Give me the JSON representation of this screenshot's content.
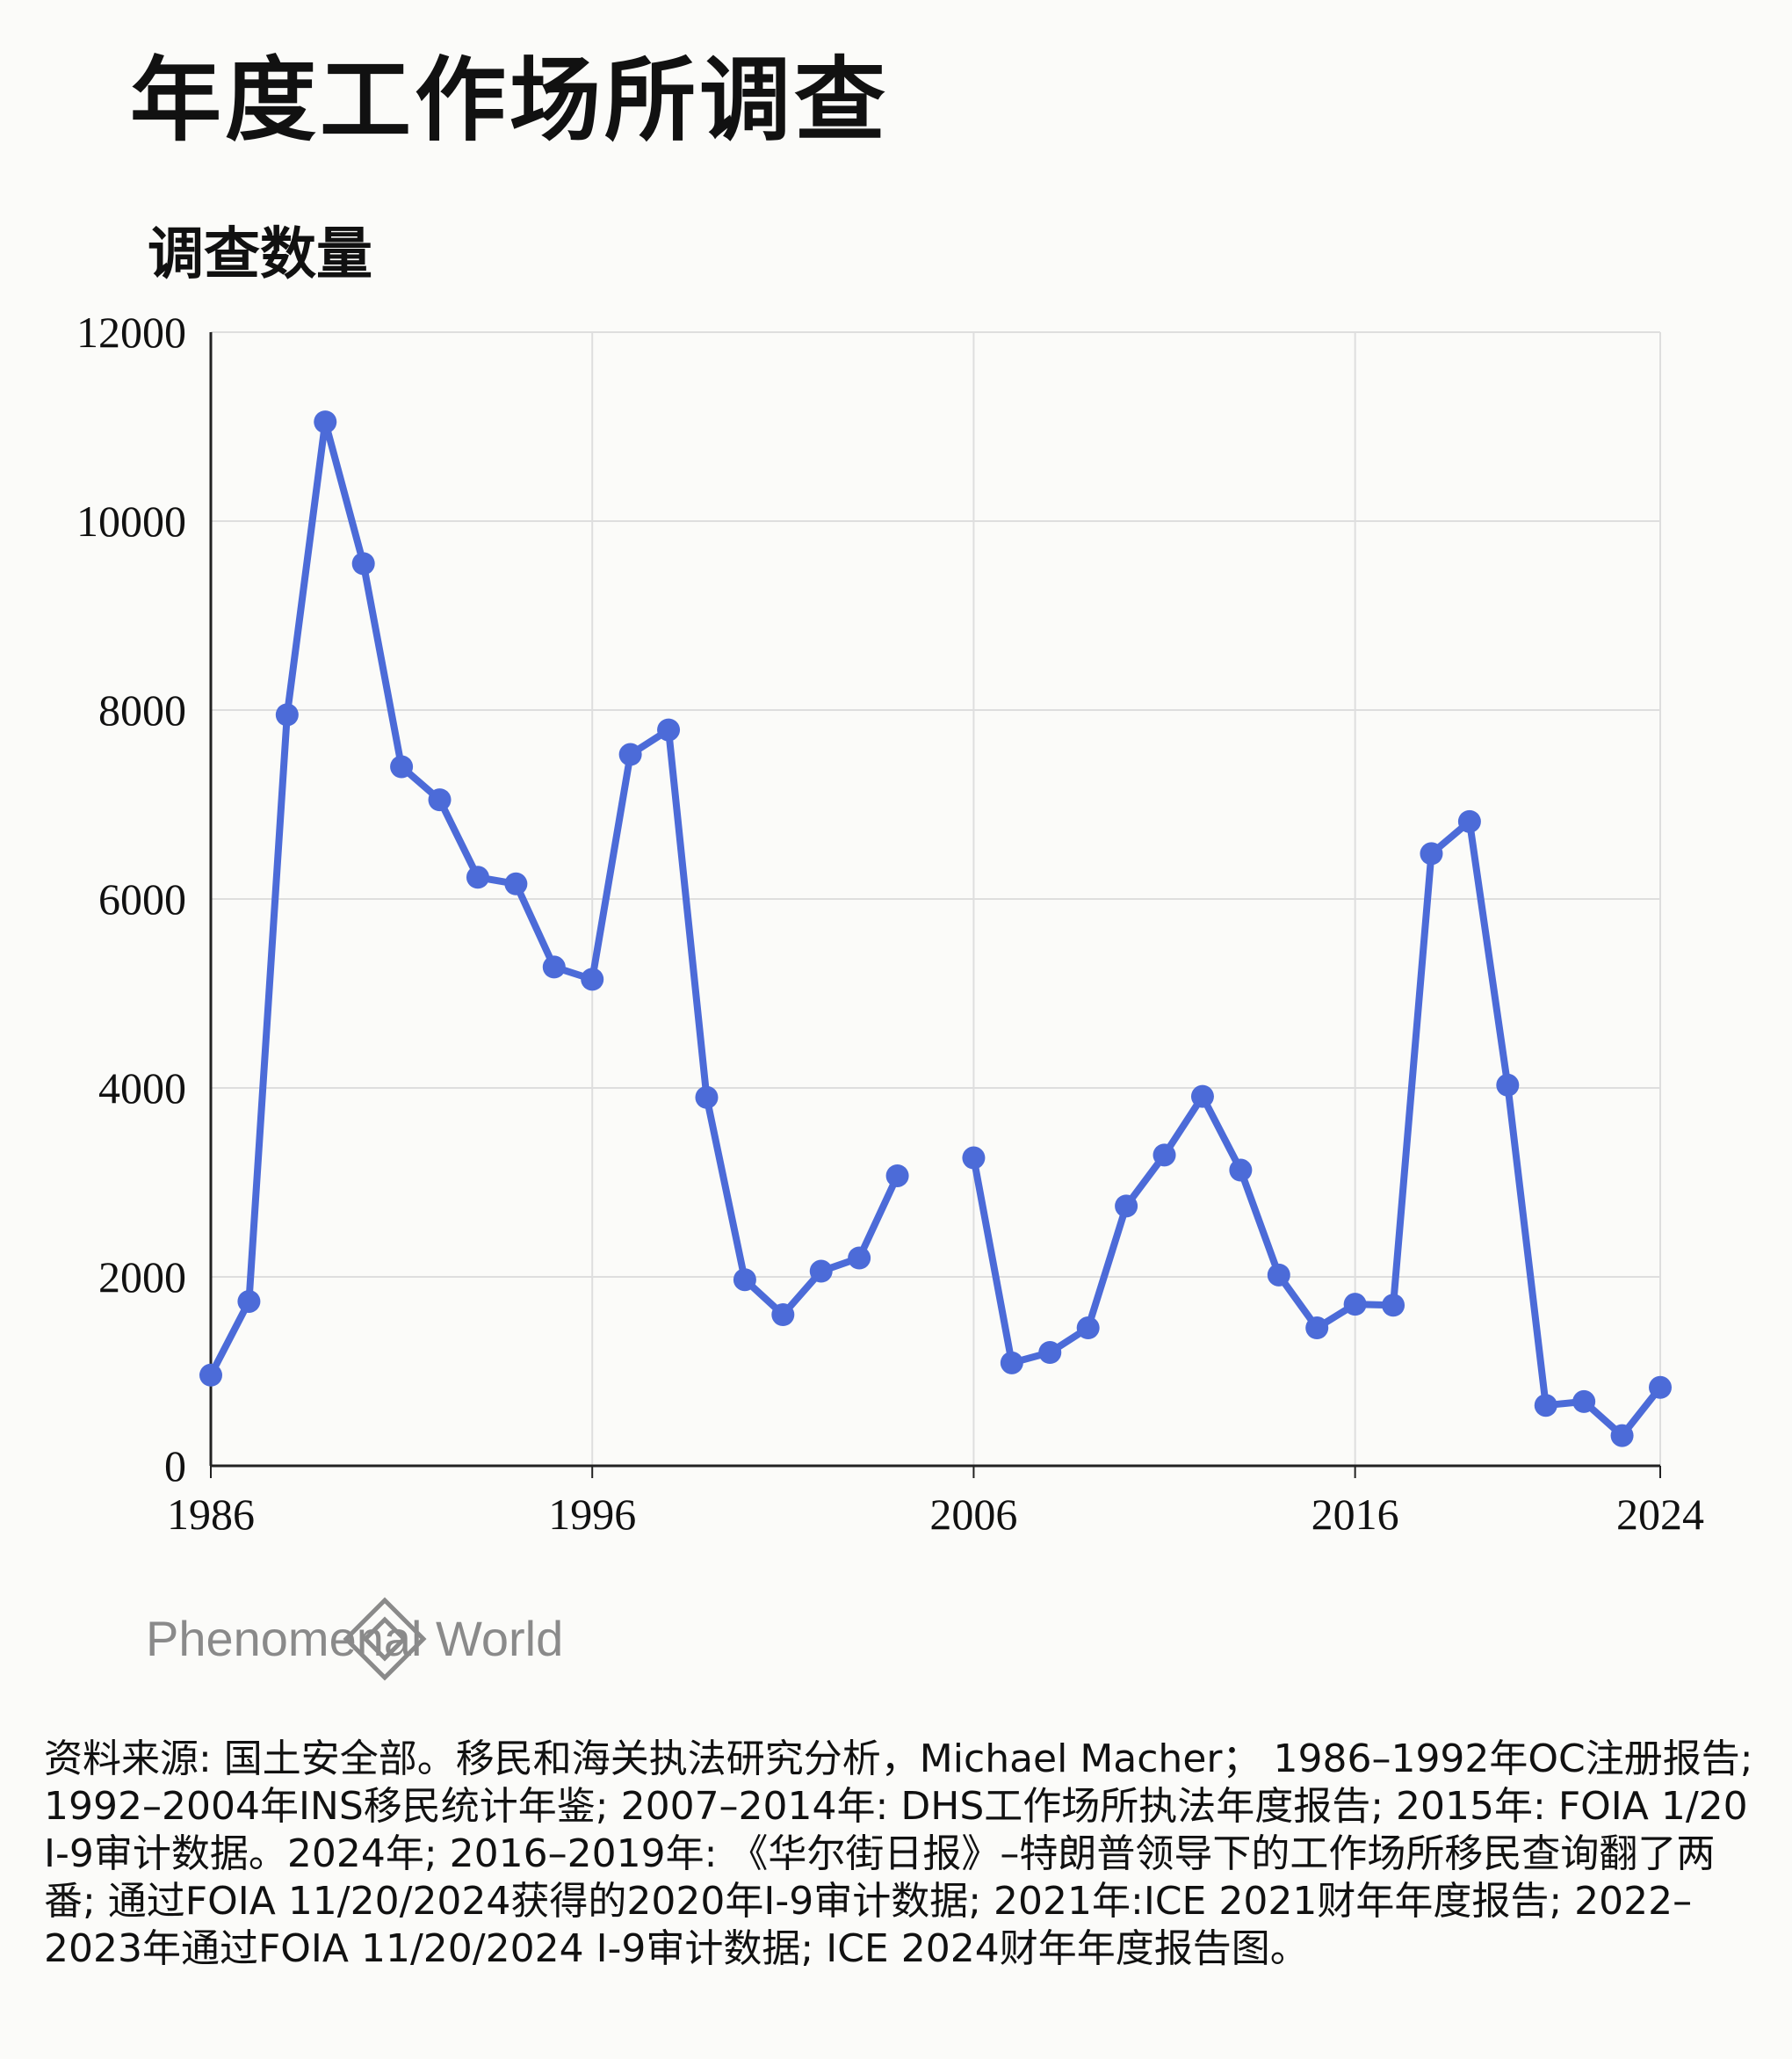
{
  "title": "年度工作场所调查",
  "brand": "Phenomenal World",
  "source": "资料来源: 国土安全部。移民和海关执法研究分析，Michael Macher；  1986–1992年OC注册报告; 1992–2004年INS移民统计年鉴; 2007–2014年: DHS工作场所执法年度报告; 2015年: FOIA 1/20 I-9审计数据。2024年; 2016–2019年: 《华尔街日报》–特朗普领导下的工作场所移民查询翻了两番; 通过FOIA 11/20/2024获得的2020年I-9审计数据; 2021年:ICE 2021财年年度报告; 2022–2023年通过FOIA 11/20/2024 I-9审计数据;  ICE 2024财年年度报告图。",
  "colors": {
    "line": "#4c6bd8",
    "grid": "#dedede",
    "axis": "#222222",
    "background": "#fbfbf9"
  },
  "chart_data": {
    "type": "line",
    "ylabel": "调查数量",
    "ylim": [
      0,
      12000
    ],
    "xlim": [
      1986,
      2024
    ],
    "yticks": [
      "0",
      "2000",
      "4000",
      "6000",
      "8000",
      "10000",
      "12000"
    ],
    "xticks": [
      "1986",
      "1996",
      "2006",
      "2016",
      "2024"
    ],
    "grid": true,
    "series": [
      {
        "x": [
          1986,
          1987,
          1988,
          1989,
          1990,
          1991,
          1992,
          1993,
          1994,
          1995,
          1996,
          1997,
          1998,
          1999,
          2000,
          2001,
          2002,
          2003,
          2004,
          2005,
          2006,
          2007,
          2008,
          2009,
          2010,
          2011,
          2012,
          2013,
          2014,
          2015,
          2016,
          2017,
          2018,
          2019,
          2020,
          2021,
          2022,
          2023,
          2024
        ],
        "y": [
          960,
          1740,
          7950,
          11050,
          9550,
          7400,
          7050,
          6230,
          6160,
          5280,
          5150,
          7530,
          7790,
          3900,
          1970,
          1600,
          2060,
          2200,
          3070,
          null,
          3260,
          1090,
          1200,
          1460,
          2750,
          3290,
          3910,
          3130,
          2020,
          1460,
          1710,
          1700,
          6480,
          6820,
          4030,
          640,
          680,
          320,
          830
        ]
      }
    ]
  }
}
